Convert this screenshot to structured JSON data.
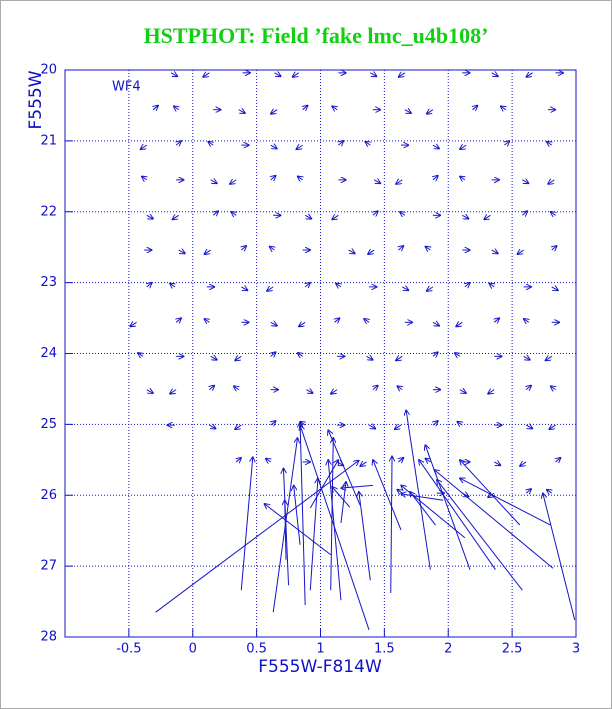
{
  "chart_data": {
    "type": "quiver",
    "title": "HSTPHOT: Field ’fake lmc_u4b108’",
    "annotation": "WF4",
    "x_label": "F555W-F814W",
    "y_label": "F555W",
    "xlim": [
      -1,
      3
    ],
    "ylim": [
      28,
      20
    ],
    "xticks": [
      -0.5,
      0,
      0.5,
      1,
      1.5,
      2,
      2.5,
      3
    ],
    "yticks": [
      20,
      21,
      22,
      23,
      24,
      25,
      26,
      27,
      28
    ],
    "grid": true,
    "color": "#1414c8",
    "arrows": [
      [
        -0.17,
        20.04,
        -0.12,
        20.09
      ],
      [
        0.13,
        20.04,
        0.08,
        20.1
      ],
      [
        0.39,
        20.04,
        0.45,
        20.04
      ],
      [
        0.64,
        20.04,
        0.69,
        20.09
      ],
      [
        0.83,
        20.04,
        0.78,
        20.1
      ],
      [
        1.14,
        20.04,
        1.2,
        20.04
      ],
      [
        1.39,
        20.04,
        1.44,
        20.09
      ],
      [
        1.66,
        20.04,
        1.61,
        20.1
      ],
      [
        2.11,
        20.04,
        2.17,
        20.04
      ],
      [
        2.34,
        20.04,
        2.39,
        20.09
      ],
      [
        2.66,
        20.04,
        2.61,
        20.1
      ],
      [
        2.84,
        20.04,
        2.9,
        20.04
      ],
      [
        -0.31,
        20.56,
        -0.27,
        20.5
      ],
      [
        -0.11,
        20.56,
        -0.15,
        20.51
      ],
      [
        0.16,
        20.56,
        0.22,
        20.56
      ],
      [
        0.36,
        20.56,
        0.41,
        20.61
      ],
      [
        0.66,
        20.56,
        0.61,
        20.62
      ],
      [
        0.86,
        20.56,
        0.9,
        20.5
      ],
      [
        1.13,
        20.56,
        1.09,
        20.51
      ],
      [
        1.41,
        20.56,
        1.47,
        20.56
      ],
      [
        1.66,
        20.56,
        1.71,
        20.61
      ],
      [
        1.88,
        20.56,
        1.83,
        20.62
      ],
      [
        2.19,
        20.56,
        2.23,
        20.5
      ],
      [
        2.45,
        20.56,
        2.41,
        20.51
      ],
      [
        2.78,
        20.56,
        2.84,
        20.56
      ],
      [
        -0.36,
        21.06,
        -0.41,
        21.12
      ],
      [
        -0.13,
        21.06,
        -0.09,
        21.0
      ],
      [
        0.16,
        21.06,
        0.12,
        21.01
      ],
      [
        0.38,
        21.06,
        0.44,
        21.06
      ],
      [
        0.61,
        21.06,
        0.66,
        21.11
      ],
      [
        0.86,
        21.06,
        0.81,
        21.12
      ],
      [
        1.14,
        21.06,
        1.18,
        21.0
      ],
      [
        1.39,
        21.06,
        1.35,
        21.01
      ],
      [
        1.63,
        21.06,
        1.69,
        21.06
      ],
      [
        1.88,
        21.06,
        1.93,
        21.11
      ],
      [
        2.14,
        21.06,
        2.09,
        21.12
      ],
      [
        2.44,
        21.06,
        2.48,
        21.0
      ],
      [
        2.81,
        21.06,
        2.77,
        21.01
      ],
      [
        -0.36,
        21.55,
        -0.4,
        21.5
      ],
      [
        -0.13,
        21.55,
        -0.07,
        21.55
      ],
      [
        0.14,
        21.55,
        0.19,
        21.6
      ],
      [
        0.34,
        21.55,
        0.29,
        21.61
      ],
      [
        0.61,
        21.55,
        0.65,
        21.49
      ],
      [
        0.86,
        21.55,
        0.82,
        21.5
      ],
      [
        1.14,
        21.55,
        1.2,
        21.55
      ],
      [
        1.42,
        21.55,
        1.47,
        21.6
      ],
      [
        1.64,
        21.55,
        1.59,
        21.61
      ],
      [
        1.88,
        21.55,
        1.92,
        21.49
      ],
      [
        2.13,
        21.55,
        2.09,
        21.5
      ],
      [
        2.34,
        21.55,
        2.4,
        21.55
      ],
      [
        2.58,
        21.55,
        2.63,
        21.6
      ],
      [
        2.83,
        21.55,
        2.78,
        21.61
      ],
      [
        -0.36,
        22.05,
        -0.31,
        22.1
      ],
      [
        -0.11,
        22.05,
        -0.16,
        22.11
      ],
      [
        0.16,
        22.05,
        0.2,
        21.99
      ],
      [
        0.34,
        22.05,
        0.3,
        22.0
      ],
      [
        0.63,
        22.05,
        0.69,
        22.05
      ],
      [
        0.88,
        22.05,
        0.93,
        22.1
      ],
      [
        1.14,
        22.05,
        1.09,
        22.11
      ],
      [
        1.41,
        22.05,
        1.45,
        21.99
      ],
      [
        1.66,
        22.05,
        1.62,
        22.0
      ],
      [
        1.88,
        22.05,
        1.94,
        22.05
      ],
      [
        2.11,
        22.05,
        2.16,
        22.1
      ],
      [
        2.33,
        22.05,
        2.28,
        22.11
      ],
      [
        2.58,
        22.05,
        2.62,
        21.99
      ],
      [
        2.84,
        22.05,
        2.8,
        22.0
      ],
      [
        -0.38,
        22.54,
        -0.32,
        22.54
      ],
      [
        -0.11,
        22.54,
        -0.06,
        22.59
      ],
      [
        0.14,
        22.54,
        0.09,
        22.6
      ],
      [
        0.38,
        22.54,
        0.42,
        22.48
      ],
      [
        0.64,
        22.54,
        0.6,
        22.49
      ],
      [
        0.86,
        22.54,
        0.92,
        22.54
      ],
      [
        1.22,
        22.54,
        1.27,
        22.59
      ],
      [
        1.42,
        22.54,
        1.37,
        22.6
      ],
      [
        1.61,
        22.54,
        1.65,
        22.48
      ],
      [
        1.86,
        22.54,
        1.82,
        22.49
      ],
      [
        2.11,
        22.54,
        2.17,
        22.54
      ],
      [
        2.34,
        22.54,
        2.39,
        22.59
      ],
      [
        2.59,
        22.54,
        2.54,
        22.6
      ],
      [
        2.81,
        22.54,
        2.85,
        22.48
      ],
      [
        -0.36,
        23.06,
        -0.32,
        23.0
      ],
      [
        -0.14,
        23.06,
        -0.18,
        23.01
      ],
      [
        0.11,
        23.06,
        0.17,
        23.06
      ],
      [
        0.38,
        23.06,
        0.43,
        23.11
      ],
      [
        0.63,
        23.06,
        0.58,
        23.12
      ],
      [
        0.88,
        23.06,
        0.92,
        23.0
      ],
      [
        1.16,
        23.06,
        1.12,
        23.01
      ],
      [
        1.38,
        23.06,
        1.44,
        23.06
      ],
      [
        1.64,
        23.06,
        1.69,
        23.11
      ],
      [
        1.88,
        23.06,
        1.83,
        23.12
      ],
      [
        2.13,
        23.06,
        2.17,
        23.0
      ],
      [
        2.36,
        23.06,
        2.32,
        23.01
      ],
      [
        2.59,
        23.06,
        2.65,
        23.06
      ],
      [
        2.81,
        23.06,
        2.86,
        23.11
      ],
      [
        -0.44,
        23.56,
        -0.49,
        23.62
      ],
      [
        -0.13,
        23.56,
        -0.09,
        23.5
      ],
      [
        0.13,
        23.56,
        0.09,
        23.51
      ],
      [
        0.38,
        23.56,
        0.44,
        23.56
      ],
      [
        0.61,
        23.56,
        0.66,
        23.61
      ],
      [
        0.88,
        23.56,
        0.83,
        23.62
      ],
      [
        1.11,
        23.56,
        1.15,
        23.5
      ],
      [
        1.38,
        23.56,
        1.34,
        23.51
      ],
      [
        1.66,
        23.56,
        1.72,
        23.56
      ],
      [
        1.88,
        23.56,
        1.93,
        23.61
      ],
      [
        2.11,
        23.56,
        2.06,
        23.62
      ],
      [
        2.36,
        23.56,
        2.4,
        23.5
      ],
      [
        2.63,
        23.56,
        2.59,
        23.51
      ],
      [
        2.81,
        23.56,
        2.87,
        23.56
      ],
      [
        -0.39,
        24.04,
        -0.43,
        23.99
      ],
      [
        -0.13,
        24.04,
        -0.07,
        24.04
      ],
      [
        0.14,
        24.04,
        0.19,
        24.09
      ],
      [
        0.38,
        24.04,
        0.33,
        24.1
      ],
      [
        0.61,
        24.04,
        0.65,
        23.98
      ],
      [
        0.86,
        24.04,
        0.82,
        23.99
      ],
      [
        1.13,
        24.04,
        1.19,
        24.04
      ],
      [
        1.36,
        24.04,
        1.41,
        24.09
      ],
      [
        1.64,
        24.04,
        1.59,
        24.1
      ],
      [
        1.88,
        24.04,
        1.92,
        23.98
      ],
      [
        2.09,
        24.04,
        2.05,
        23.99
      ],
      [
        2.36,
        24.04,
        2.42,
        24.04
      ],
      [
        2.59,
        24.04,
        2.64,
        24.09
      ],
      [
        2.81,
        24.04,
        2.76,
        24.1
      ],
      [
        -0.36,
        24.51,
        -0.31,
        24.56
      ],
      [
        -0.13,
        24.51,
        -0.18,
        24.57
      ],
      [
        0.13,
        24.51,
        0.17,
        24.45
      ],
      [
        0.36,
        24.51,
        0.32,
        24.46
      ],
      [
        0.61,
        24.51,
        0.67,
        24.51
      ],
      [
        0.89,
        24.51,
        0.94,
        24.56
      ],
      [
        1.13,
        24.51,
        1.08,
        24.57
      ],
      [
        1.41,
        24.51,
        1.45,
        24.45
      ],
      [
        1.64,
        24.51,
        1.6,
        24.46
      ],
      [
        1.88,
        24.51,
        1.94,
        24.51
      ],
      [
        2.09,
        24.51,
        2.14,
        24.56
      ],
      [
        2.36,
        24.51,
        2.31,
        24.57
      ],
      [
        2.61,
        24.51,
        2.65,
        24.45
      ],
      [
        2.84,
        24.51,
        2.8,
        24.46
      ],
      [
        -0.14,
        25.01,
        -0.2,
        25.01
      ],
      [
        0.13,
        25.01,
        0.18,
        25.06
      ],
      [
        0.38,
        25.01,
        0.33,
        25.07
      ],
      [
        0.61,
        25.01,
        0.65,
        24.95
      ],
      [
        0.88,
        25.01,
        0.84,
        24.96
      ],
      [
        1.13,
        25.01,
        1.19,
        25.01
      ],
      [
        1.38,
        25.01,
        1.43,
        25.06
      ],
      [
        1.63,
        25.01,
        1.58,
        25.07
      ],
      [
        1.88,
        25.01,
        1.92,
        24.95
      ],
      [
        2.11,
        25.01,
        2.07,
        24.96
      ],
      [
        2.36,
        25.01,
        2.42,
        25.01
      ],
      [
        2.61,
        25.01,
        2.66,
        25.06
      ],
      [
        2.84,
        25.01,
        2.79,
        25.07
      ],
      [
        0.34,
        25.53,
        0.38,
        25.47
      ],
      [
        0.61,
        25.53,
        0.57,
        25.48
      ],
      [
        0.86,
        25.53,
        0.92,
        25.53
      ],
      [
        1.13,
        25.53,
        1.18,
        25.58
      ],
      [
        1.36,
        25.53,
        1.31,
        25.59
      ],
      [
        1.61,
        25.53,
        1.65,
        25.47
      ],
      [
        1.86,
        25.53,
        1.82,
        25.48
      ],
      [
        2.11,
        25.53,
        2.17,
        25.53
      ],
      [
        2.36,
        25.53,
        2.41,
        25.58
      ],
      [
        2.61,
        25.53,
        2.56,
        25.59
      ],
      [
        2.84,
        25.53,
        2.88,
        25.47
      ],
      [
        1.64,
        25.97,
        1.6,
        25.92
      ],
      [
        1.91,
        25.97,
        1.97,
        25.97
      ],
      [
        2.11,
        25.97,
        2.16,
        26.02
      ],
      [
        2.36,
        25.97,
        2.31,
        26.03
      ],
      [
        2.61,
        25.97,
        2.65,
        25.91
      ],
      [
        2.81,
        25.97,
        2.77,
        25.92
      ],
      [
        -0.29,
        27.65,
        1.3,
        25.51
      ],
      [
        0.38,
        27.34,
        0.47,
        25.46
      ],
      [
        0.63,
        27.65,
        0.82,
        25.19
      ],
      [
        0.75,
        27.27,
        0.71,
        25.62
      ],
      [
        0.88,
        27.55,
        0.84,
        24.97
      ],
      [
        1.08,
        27.34,
        1.1,
        25.19
      ],
      [
        1.38,
        27.9,
        0.84,
        25.01
      ],
      [
        1.16,
        27.48,
        1.06,
        25.5
      ],
      [
        1.55,
        27.38,
        1.56,
        25.45
      ],
      [
        1.86,
        27.05,
        1.67,
        24.8
      ],
      [
        2.17,
        27.05,
        1.82,
        25.29
      ],
      [
        2.37,
        27.05,
        1.77,
        25.5
      ],
      [
        2.58,
        27.34,
        1.91,
        25.78
      ],
      [
        2.82,
        27.03,
        1.89,
        25.64
      ],
      [
        2.8,
        26.42,
        2.09,
        25.76
      ],
      [
        2.56,
        26.42,
        2.09,
        25.5
      ],
      [
        2.99,
        27.76,
        2.74,
        25.97
      ],
      [
        1.23,
        26.17,
        1.09,
        25.88
      ],
      [
        1.08,
        26.84,
        0.56,
        26.12
      ],
      [
        1.31,
        26.14,
        1.06,
        25.08
      ],
      [
        0.73,
        26.91,
        0.72,
        26.07
      ],
      [
        0.84,
        26.7,
        0.79,
        25.86
      ],
      [
        1.16,
        26.39,
        1.2,
        25.81
      ],
      [
        0.92,
        26.18,
        1.14,
        25.5
      ],
      [
        2.13,
        26.6,
        1.63,
        25.86
      ],
      [
        1.63,
        26.49,
        1.41,
        25.5
      ],
      [
        0.92,
        27.34,
        0.98,
        25.76
      ],
      [
        1.41,
        25.86,
        1.16,
        25.9
      ],
      [
        1.96,
        26.07,
        1.63,
        25.98
      ],
      [
        1.9,
        26.42,
        1.7,
        25.95
      ],
      [
        1.39,
        27.2,
        1.3,
        25.95
      ]
    ]
  }
}
